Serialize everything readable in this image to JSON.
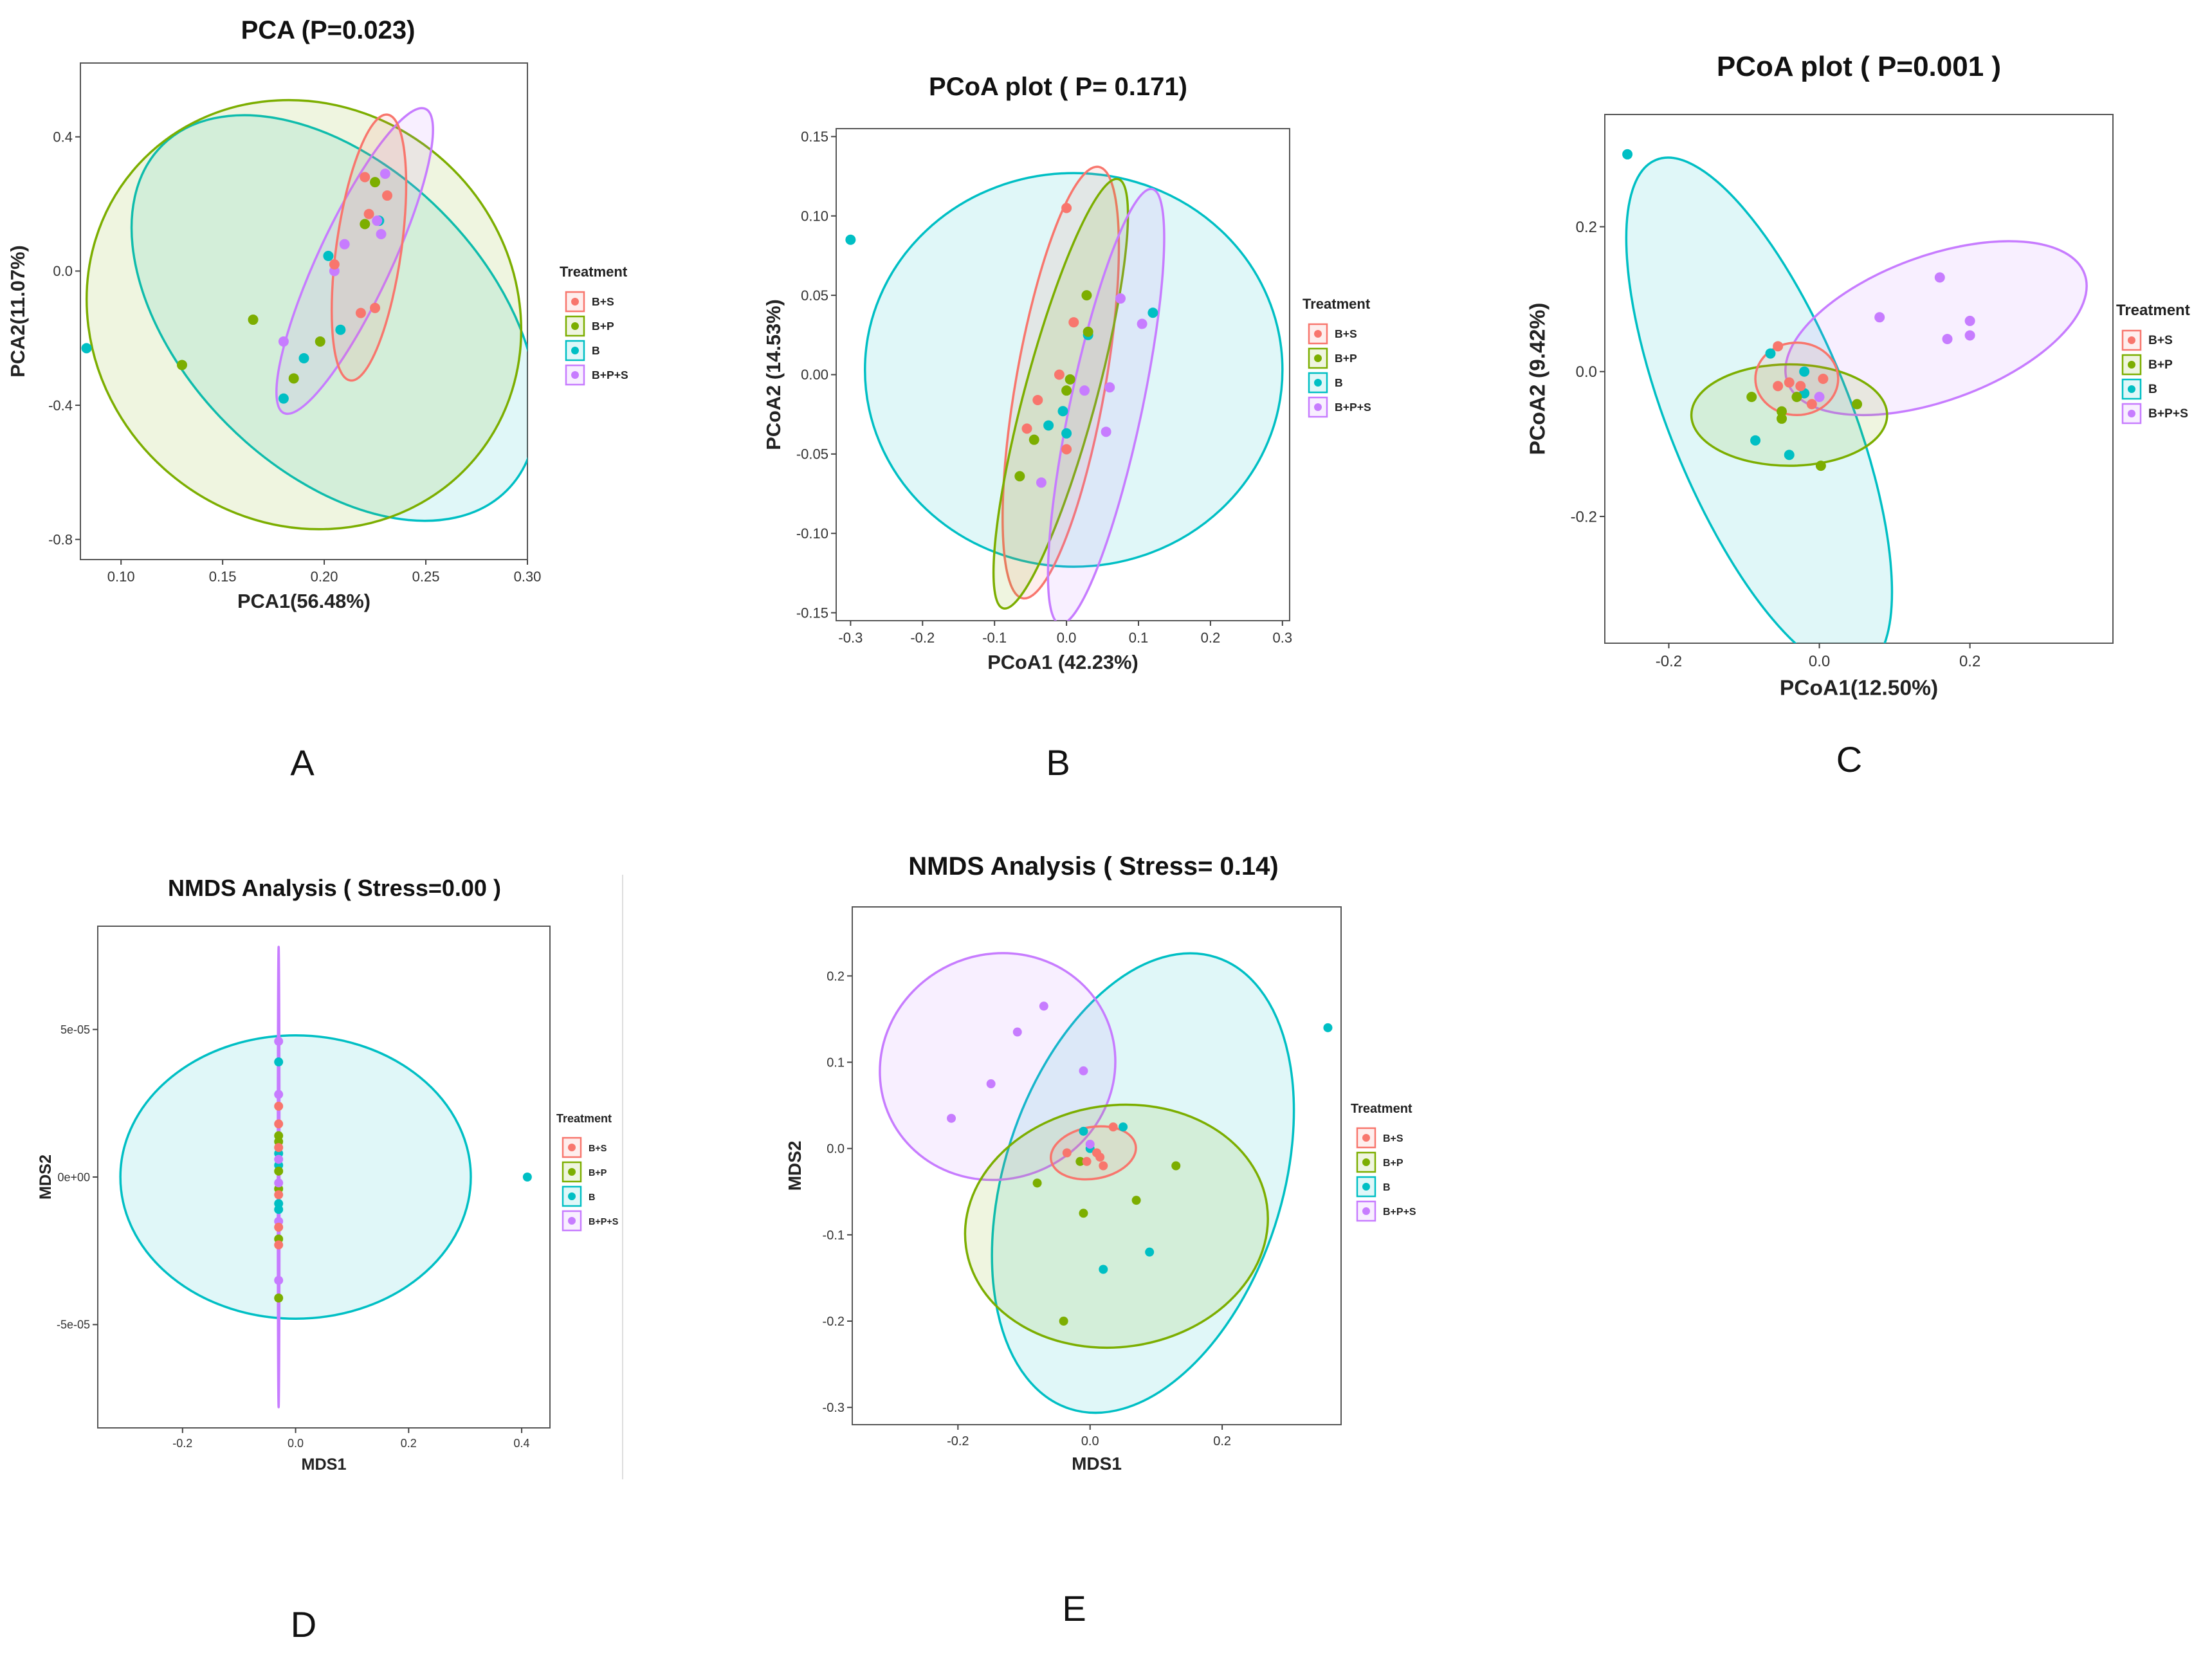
{
  "group_colors": {
    "B+S": "#F8766D",
    "B+P": "#7CAE00",
    "B": "#00BFC4",
    "B+P+S": "#C77CFF"
  },
  "chart_data": [
    {
      "id": "A",
      "type": "scatter",
      "panel_letter": "A",
      "title": "PCA  (P=0.023)",
      "xlabel": "PCA1(56.48%)",
      "ylabel": "PCA2(11.07%)",
      "xlim": [
        0.08,
        0.3
      ],
      "ylim": [
        -0.86,
        0.62
      ],
      "xticks": [
        0.1,
        0.15,
        0.2,
        0.25,
        0.3
      ],
      "xtick_labels": [
        "0.10",
        "0.15",
        "0.20",
        "0.25",
        "0.30"
      ],
      "yticks": [
        -0.8,
        -0.4,
        0.0,
        0.4
      ],
      "ytick_labels": [
        "-0.8",
        "-0.4",
        "0.0",
        "0.4"
      ],
      "legend_title": "Treatment",
      "legend_items": [
        "B+S",
        "B+P",
        "B",
        "B+P+S"
      ],
      "ellipses": [
        {
          "group": "B",
          "cx": 0.205,
          "cy": -0.14,
          "rx": 0.12,
          "ry": 0.45,
          "rot": 45
        },
        {
          "group": "B+P",
          "cx": 0.19,
          "cy": -0.13,
          "rx": 0.11,
          "ry": 0.62,
          "rot": 40
        },
        {
          "group": "B+P+S",
          "cx": 0.215,
          "cy": 0.03,
          "rx": 0.018,
          "ry": 0.5,
          "rot": 25
        },
        {
          "group": "B+S",
          "cx": 0.222,
          "cy": 0.07,
          "rx": 0.016,
          "ry": 0.4,
          "rot": 8
        }
      ],
      "points": [
        {
          "group": "B",
          "x": 0.083,
          "y": -0.23
        },
        {
          "group": "B",
          "x": 0.18,
          "y": -0.38
        },
        {
          "group": "B",
          "x": 0.19,
          "y": -0.26
        },
        {
          "group": "B",
          "x": 0.208,
          "y": -0.175
        },
        {
          "group": "B",
          "x": 0.202,
          "y": 0.045
        },
        {
          "group": "B",
          "x": 0.227,
          "y": 0.15
        },
        {
          "group": "B+P",
          "x": 0.13,
          "y": -0.28
        },
        {
          "group": "B+P",
          "x": 0.165,
          "y": -0.145
        },
        {
          "group": "B+P",
          "x": 0.185,
          "y": -0.32
        },
        {
          "group": "B+P",
          "x": 0.198,
          "y": -0.21
        },
        {
          "group": "B+P",
          "x": 0.22,
          "y": 0.14
        },
        {
          "group": "B+P",
          "x": 0.225,
          "y": 0.265
        },
        {
          "group": "B+P+S",
          "x": 0.18,
          "y": -0.21
        },
        {
          "group": "B+P+S",
          "x": 0.205,
          "y": 0.0
        },
        {
          "group": "B+P+S",
          "x": 0.21,
          "y": 0.08
        },
        {
          "group": "B+P+S",
          "x": 0.226,
          "y": 0.15
        },
        {
          "group": "B+P+S",
          "x": 0.23,
          "y": 0.29
        },
        {
          "group": "B+P+S",
          "x": 0.228,
          "y": 0.11
        },
        {
          "group": "B+S",
          "x": 0.218,
          "y": -0.125
        },
        {
          "group": "B+S",
          "x": 0.225,
          "y": -0.11
        },
        {
          "group": "B+S",
          "x": 0.222,
          "y": 0.17
        },
        {
          "group": "B+S",
          "x": 0.231,
          "y": 0.225
        },
        {
          "group": "B+S",
          "x": 0.22,
          "y": 0.28
        },
        {
          "group": "B+S",
          "x": 0.205,
          "y": 0.02
        }
      ]
    },
    {
      "id": "B",
      "type": "scatter",
      "panel_letter": "B",
      "title": "PCoA plot ( P= 0.171)",
      "xlabel": "PCoA1 (42.23%)",
      "ylabel": "PCoA2  (14.53%)",
      "xlim": [
        -0.32,
        0.31
      ],
      "ylim": [
        -0.155,
        0.155
      ],
      "xticks": [
        -0.3,
        -0.2,
        -0.1,
        0.0,
        0.1,
        0.2,
        0.3
      ],
      "xtick_labels": [
        "-0.3",
        "-0.2",
        "-0.1",
        "0.0",
        "0.1",
        "0.2",
        "0.3"
      ],
      "yticks": [
        -0.15,
        -0.1,
        -0.05,
        0.0,
        0.05,
        0.1,
        0.15
      ],
      "ytick_labels": [
        "-0.15",
        "-0.10",
        "-0.05",
        "0.00",
        "0.05",
        "0.10",
        "0.15"
      ],
      "legend_title": "Treatment",
      "legend_items": [
        "B+S",
        "B+P",
        "B",
        "B+P+S"
      ],
      "ellipses": [
        {
          "group": "B",
          "cx": 0.01,
          "cy": 0.003,
          "rx": 0.29,
          "ry": 0.124,
          "rot": 0
        },
        {
          "group": "B+S",
          "cx": -0.008,
          "cy": -0.005,
          "rx": 0.062,
          "ry": 0.138,
          "rot": 10
        },
        {
          "group": "B+P",
          "cx": -0.008,
          "cy": -0.012,
          "rx": 0.05,
          "ry": 0.14,
          "rot": 15
        },
        {
          "group": "B+P+S",
          "cx": 0.055,
          "cy": -0.02,
          "rx": 0.05,
          "ry": 0.14,
          "rot": 12
        }
      ],
      "points": [
        {
          "group": "B",
          "x": -0.3,
          "y": 0.085
        },
        {
          "group": "B",
          "x": 0.12,
          "y": 0.039
        },
        {
          "group": "B",
          "x": 0.03,
          "y": 0.025
        },
        {
          "group": "B",
          "x": -0.005,
          "y": -0.023
        },
        {
          "group": "B",
          "x": -0.025,
          "y": -0.032
        },
        {
          "group": "B",
          "x": 0.0,
          "y": -0.037
        },
        {
          "group": "B+P",
          "x": -0.065,
          "y": -0.064
        },
        {
          "group": "B+P",
          "x": -0.045,
          "y": -0.041
        },
        {
          "group": "B+P",
          "x": 0.0,
          "y": -0.01
        },
        {
          "group": "B+P",
          "x": 0.005,
          "y": -0.003
        },
        {
          "group": "B+P",
          "x": 0.028,
          "y": 0.05
        },
        {
          "group": "B+P",
          "x": 0.03,
          "y": 0.027
        },
        {
          "group": "B+P+S",
          "x": 0.075,
          "y": 0.048
        },
        {
          "group": "B+P+S",
          "x": 0.105,
          "y": 0.032
        },
        {
          "group": "B+P+S",
          "x": 0.06,
          "y": -0.008
        },
        {
          "group": "B+P+S",
          "x": 0.055,
          "y": -0.036
        },
        {
          "group": "B+P+S",
          "x": -0.035,
          "y": -0.068
        },
        {
          "group": "B+P+S",
          "x": 0.025,
          "y": -0.01
        },
        {
          "group": "B+S",
          "x": 0.0,
          "y": 0.105
        },
        {
          "group": "B+S",
          "x": 0.01,
          "y": 0.033
        },
        {
          "group": "B+S",
          "x": -0.04,
          "y": -0.016
        },
        {
          "group": "B+S",
          "x": -0.055,
          "y": -0.034
        },
        {
          "group": "B+S",
          "x": 0.0,
          "y": -0.047
        },
        {
          "group": "B+S",
          "x": -0.01,
          "y": 0.0
        }
      ]
    },
    {
      "id": "C",
      "type": "scatter",
      "panel_letter": "C",
      "title": "PCoA plot ( P=0.001 )",
      "xlabel": "PCoA1(12.50%)",
      "ylabel": "PCoA2  (9.42%)",
      "xlim": [
        -0.285,
        0.39
      ],
      "ylim": [
        -0.375,
        0.355
      ],
      "xticks": [
        -0.2,
        0.0,
        0.2
      ],
      "xtick_labels": [
        "-0.2",
        "0.0",
        "0.2"
      ],
      "yticks": [
        -0.2,
        0.0,
        0.2
      ],
      "ytick_labels": [
        "-0.2",
        "0.0",
        "0.2"
      ],
      "legend_title": "Treatment",
      "legend_items": [
        "B+S",
        "B+P",
        "B",
        "B+P+S"
      ],
      "ellipses": [
        {
          "group": "B",
          "cx": -0.08,
          "cy": -0.06,
          "rx": 0.12,
          "ry": 0.38,
          "rot": -22
        },
        {
          "group": "B+P+S",
          "cx": 0.155,
          "cy": 0.06,
          "rx": 0.21,
          "ry": 0.1,
          "rot": -20
        },
        {
          "group": "B+P",
          "cx": -0.04,
          "cy": -0.06,
          "rx": 0.13,
          "ry": 0.07,
          "rot": 0
        },
        {
          "group": "B+S",
          "cx": -0.03,
          "cy": -0.01,
          "rx": 0.055,
          "ry": 0.05,
          "rot": 0
        }
      ],
      "points": [
        {
          "group": "B",
          "x": -0.255,
          "y": 0.3
        },
        {
          "group": "B",
          "x": -0.085,
          "y": -0.095
        },
        {
          "group": "B",
          "x": -0.04,
          "y": -0.115
        },
        {
          "group": "B",
          "x": -0.02,
          "y": 0.0
        },
        {
          "group": "B",
          "x": -0.065,
          "y": 0.025
        },
        {
          "group": "B",
          "x": -0.02,
          "y": -0.03
        },
        {
          "group": "B+P",
          "x": -0.09,
          "y": -0.035
        },
        {
          "group": "B+P",
          "x": -0.05,
          "y": -0.055
        },
        {
          "group": "B+P",
          "x": -0.05,
          "y": -0.065
        },
        {
          "group": "B+P",
          "x": 0.05,
          "y": -0.045
        },
        {
          "group": "B+P",
          "x": 0.002,
          "y": -0.13
        },
        {
          "group": "B+P",
          "x": -0.03,
          "y": -0.035
        },
        {
          "group": "B+P+S",
          "x": 0.08,
          "y": 0.075
        },
        {
          "group": "B+P+S",
          "x": 0.16,
          "y": 0.13
        },
        {
          "group": "B+P+S",
          "x": 0.2,
          "y": 0.07
        },
        {
          "group": "B+P+S",
          "x": 0.17,
          "y": 0.045
        },
        {
          "group": "B+P+S",
          "x": 0.2,
          "y": 0.05
        },
        {
          "group": "B+P+S",
          "x": 0.0,
          "y": -0.035
        },
        {
          "group": "B+S",
          "x": -0.055,
          "y": 0.035
        },
        {
          "group": "B+S",
          "x": -0.04,
          "y": -0.015
        },
        {
          "group": "B+S",
          "x": -0.025,
          "y": -0.02
        },
        {
          "group": "B+S",
          "x": -0.01,
          "y": -0.045
        },
        {
          "group": "B+S",
          "x": 0.005,
          "y": -0.01
        },
        {
          "group": "B+S",
          "x": -0.055,
          "y": -0.02
        }
      ]
    },
    {
      "id": "D",
      "type": "scatter",
      "panel_letter": "D",
      "title": "NMDS Analysis ( Stress=0.00 )",
      "xlabel": "MDS1",
      "ylabel": "MDS2",
      "xlim": [
        -0.35,
        0.45
      ],
      "ylim": [
        -8.5e-05,
        8.5e-05
      ],
      "xticks": [
        -0.2,
        0.0,
        0.2,
        0.4
      ],
      "xtick_labels": [
        "-0.2",
        "0.0",
        "0.2",
        "0.4"
      ],
      "yticks": [
        -5e-05,
        0.0,
        5e-05
      ],
      "ytick_labels": [
        "-5e-05",
        "0e+00",
        "5e-05"
      ],
      "legend_title": "Treatment",
      "legend_items": [
        "B+S",
        "B+P",
        "B",
        "B+P+S"
      ],
      "ellipses": [
        {
          "group": "B",
          "cx": 0.0,
          "cy": 0.0,
          "rx": 0.31,
          "ry": 4.8e-05,
          "rot": 0
        },
        {
          "group": "B+P+S",
          "cx": -0.03,
          "cy": 0.0,
          "rx": 0.0015,
          "ry": 7.8e-05,
          "rot": 0
        }
      ],
      "points": [
        {
          "group": "B",
          "x": 0.41,
          "y": 0.0
        },
        {
          "group": "B",
          "x": -0.03,
          "y": 3.9e-05
        },
        {
          "group": "B",
          "x": -0.03,
          "y": 8e-06
        },
        {
          "group": "B",
          "x": -0.03,
          "y": -9e-06
        },
        {
          "group": "B",
          "x": -0.03,
          "y": -1.1e-05
        },
        {
          "group": "B",
          "x": -0.03,
          "y": 4e-06
        },
        {
          "group": "B+P",
          "x": -0.03,
          "y": 1.4e-05
        },
        {
          "group": "B+P",
          "x": -0.03,
          "y": 1.2e-05
        },
        {
          "group": "B+P",
          "x": -0.03,
          "y": -2.1e-05
        },
        {
          "group": "B+P",
          "x": -0.03,
          "y": -4.1e-05
        },
        {
          "group": "B+P",
          "x": -0.03,
          "y": 2e-06
        },
        {
          "group": "B+P",
          "x": -0.03,
          "y": -4e-06
        },
        {
          "group": "B+P+S",
          "x": -0.03,
          "y": 4.6e-05
        },
        {
          "group": "B+P+S",
          "x": -0.03,
          "y": 2.8e-05
        },
        {
          "group": "B+P+S",
          "x": -0.03,
          "y": 6e-06
        },
        {
          "group": "B+P+S",
          "x": -0.03,
          "y": -3.5e-05
        },
        {
          "group": "B+P+S",
          "x": -0.03,
          "y": -1.5e-05
        },
        {
          "group": "B+P+S",
          "x": -0.03,
          "y": -2e-06
        },
        {
          "group": "B+S",
          "x": -0.03,
          "y": 2.4e-05
        },
        {
          "group": "B+S",
          "x": -0.03,
          "y": 1.8e-05
        },
        {
          "group": "B+S",
          "x": -0.03,
          "y": -6e-06
        },
        {
          "group": "B+S",
          "x": -0.03,
          "y": -1.7e-05
        },
        {
          "group": "B+S",
          "x": -0.03,
          "y": -2.3e-05
        },
        {
          "group": "B+S",
          "x": -0.03,
          "y": 1e-05
        }
      ]
    },
    {
      "id": "E",
      "type": "scatter",
      "panel_letter": "E",
      "title": "NMDS Analysis ( Stress= 0.14)",
      "xlabel": "MDS1",
      "ylabel": "MDS2",
      "xlim": [
        -0.36,
        0.38
      ],
      "ylim": [
        -0.32,
        0.28
      ],
      "xticks": [
        -0.2,
        0.0,
        0.2
      ],
      "xtick_labels": [
        "-0.2",
        "0.0",
        "0.2"
      ],
      "yticks": [
        -0.3,
        -0.2,
        -0.1,
        0.0,
        0.1,
        0.2
      ],
      "ytick_labels": [
        "-0.3",
        "-0.2",
        "-0.1",
        "0.0",
        "0.1",
        "0.2"
      ],
      "legend_title": "Treatment",
      "legend_items": [
        "B+S",
        "B+P",
        "B",
        "B+P+S"
      ],
      "ellipses": [
        {
          "group": "B",
          "cx": 0.08,
          "cy": -0.04,
          "rx": 0.21,
          "ry": 0.275,
          "rot": 18
        },
        {
          "group": "B+P+S",
          "cx": -0.14,
          "cy": 0.095,
          "rx": 0.18,
          "ry": 0.13,
          "rot": -25
        },
        {
          "group": "B+P",
          "cx": 0.04,
          "cy": -0.09,
          "rx": 0.23,
          "ry": 0.14,
          "rot": -8
        },
        {
          "group": "B+S",
          "cx": 0.005,
          "cy": -0.005,
          "rx": 0.065,
          "ry": 0.03,
          "rot": -10
        }
      ],
      "points": [
        {
          "group": "B",
          "x": 0.36,
          "y": 0.14
        },
        {
          "group": "B",
          "x": 0.09,
          "y": -0.12
        },
        {
          "group": "B",
          "x": 0.02,
          "y": -0.14
        },
        {
          "group": "B",
          "x": -0.01,
          "y": 0.02
        },
        {
          "group": "B",
          "x": 0.05,
          "y": 0.025
        },
        {
          "group": "B",
          "x": 0.0,
          "y": 0.0
        },
        {
          "group": "B+P",
          "x": -0.08,
          "y": -0.04
        },
        {
          "group": "B+P",
          "x": -0.01,
          "y": -0.075
        },
        {
          "group": "B+P",
          "x": 0.07,
          "y": -0.06
        },
        {
          "group": "B+P",
          "x": 0.13,
          "y": -0.02
        },
        {
          "group": "B+P",
          "x": -0.04,
          "y": -0.2
        },
        {
          "group": "B+P",
          "x": -0.015,
          "y": -0.015
        },
        {
          "group": "B+P+S",
          "x": -0.21,
          "y": 0.035
        },
        {
          "group": "B+P+S",
          "x": -0.15,
          "y": 0.075
        },
        {
          "group": "B+P+S",
          "x": -0.11,
          "y": 0.135
        },
        {
          "group": "B+P+S",
          "x": -0.07,
          "y": 0.165
        },
        {
          "group": "B+P+S",
          "x": -0.01,
          "y": 0.09
        },
        {
          "group": "B+P+S",
          "x": 0.0,
          "y": 0.005
        },
        {
          "group": "B+S",
          "x": -0.035,
          "y": -0.005
        },
        {
          "group": "B+S",
          "x": 0.015,
          "y": -0.01
        },
        {
          "group": "B+S",
          "x": 0.035,
          "y": 0.025
        },
        {
          "group": "B+S",
          "x": 0.02,
          "y": -0.02
        },
        {
          "group": "B+S",
          "x": -0.005,
          "y": -0.015
        },
        {
          "group": "B+S",
          "x": 0.01,
          "y": -0.005
        }
      ]
    }
  ]
}
